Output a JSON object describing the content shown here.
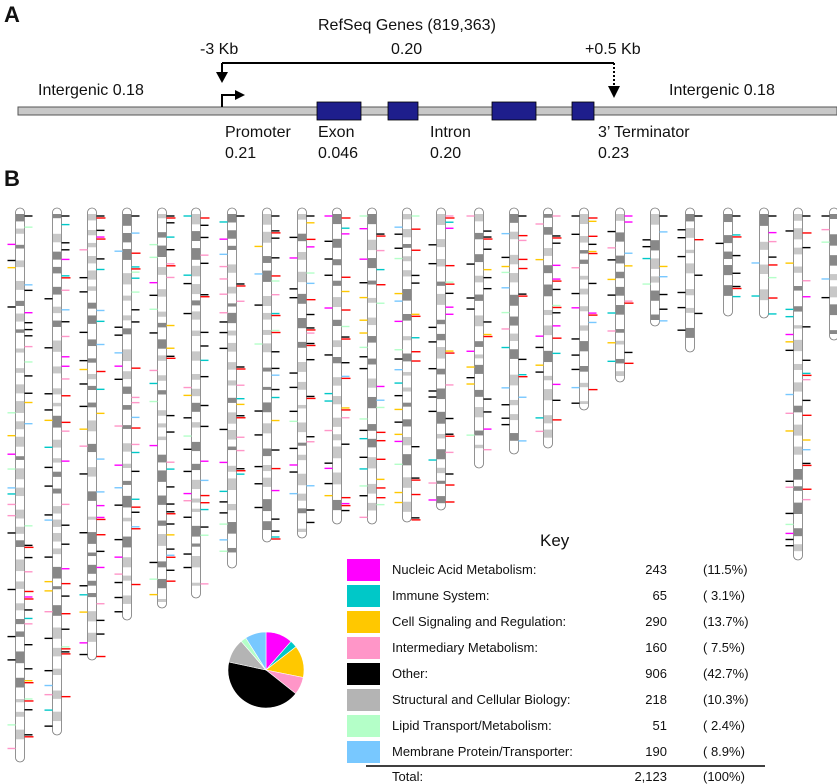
{
  "panel_a": {
    "label": "A",
    "title": "RefSeq Genes (819,363)",
    "upstream": "-3 Kb",
    "gene_value": "0.20",
    "downstream": "+0.5 Kb",
    "intergenic_left": "Intergenic  0.18",
    "intergenic_right": "Intergenic  0.18",
    "regions": [
      {
        "name": "Promoter",
        "value": "0.21"
      },
      {
        "name": "Exon",
        "value": "0.046"
      },
      {
        "name": "Intron",
        "value": "0.20"
      },
      {
        "name": "3’ Terminator",
        "value": "0.23"
      }
    ],
    "colors": {
      "exon": "#1e1e8c",
      "line": "#c8c8c8"
    }
  },
  "panel_b": {
    "label": "B",
    "key_title": "Key",
    "categories": [
      {
        "name": "Nucleic Acid Metabolism:",
        "count": "243",
        "percent": "(11.5%)",
        "value": 243,
        "color": "#ff00ff"
      },
      {
        "name": "Immune System:",
        "count": "65",
        "percent": "( 3.1%)",
        "value": 65,
        "color": "#00c8c8"
      },
      {
        "name": "Cell Signaling and Regulation:",
        "count": "290",
        "percent": "(13.7%)",
        "value": 290,
        "color": "#ffc800"
      },
      {
        "name": "Intermediary Metabolism:",
        "count": "160",
        "percent": "( 7.5%)",
        "value": 160,
        "color": "#ff96c8"
      },
      {
        "name": "Other:",
        "count": "906",
        "percent": "(42.7%)",
        "value": 906,
        "color": "#000000"
      },
      {
        "name": "Structural and Cellular Biology:",
        "count": "218",
        "percent": "(10.3%)",
        "value": 218,
        "color": "#b4b4b4"
      },
      {
        "name": "Lipid Transport/Metabolism:",
        "count": "51",
        "percent": "( 2.4%)",
        "value": 51,
        "color": "#b4ffc8"
      },
      {
        "name": "Membrane Protein/Transporter:",
        "count": "190",
        "percent": "( 8.9%)",
        "value": 190,
        "color": "#78c8ff"
      }
    ],
    "total": {
      "name": "Total:",
      "count": "2,123",
      "percent": "(100%)"
    },
    "chromosome_count": 24
  }
}
